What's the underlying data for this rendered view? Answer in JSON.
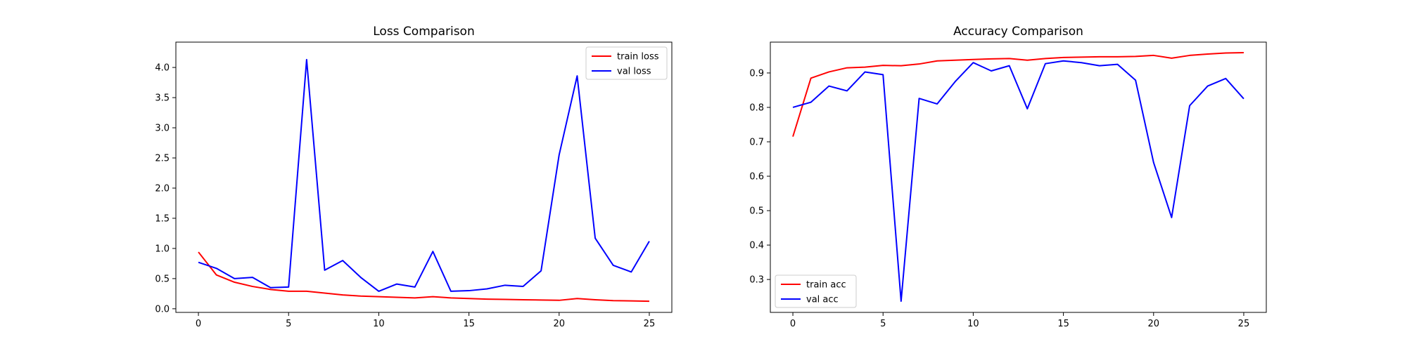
{
  "chart_data": [
    {
      "type": "line",
      "title": "Loss Comparison",
      "xlabel": "",
      "ylabel": "",
      "x": [
        0,
        1,
        2,
        3,
        4,
        5,
        6,
        7,
        8,
        9,
        10,
        11,
        12,
        13,
        14,
        15,
        16,
        17,
        18,
        19,
        20,
        21,
        22,
        23,
        24,
        25
      ],
      "xlim": [
        -1.25,
        26.25
      ],
      "ylim": [
        -0.06,
        4.42
      ],
      "xticks": [
        0,
        5,
        10,
        15,
        20,
        25
      ],
      "yticks": [
        0.0,
        0.5,
        1.0,
        1.5,
        2.0,
        2.5,
        3.0,
        3.5,
        4.0
      ],
      "ytick_labels": [
        "0.0",
        "0.5",
        "1.0",
        "1.5",
        "2.0",
        "2.5",
        "3.0",
        "3.5",
        "4.0"
      ],
      "legend_position": "upper right",
      "grid": false,
      "series": [
        {
          "name": "train loss",
          "color": "#ff0000",
          "values": [
            0.94,
            0.56,
            0.44,
            0.37,
            0.32,
            0.29,
            0.29,
            0.26,
            0.23,
            0.21,
            0.2,
            0.19,
            0.18,
            0.2,
            0.18,
            0.17,
            0.16,
            0.155,
            0.15,
            0.145,
            0.14,
            0.17,
            0.15,
            0.135,
            0.13,
            0.125
          ]
        },
        {
          "name": "val loss",
          "color": "#0000ff",
          "values": [
            0.77,
            0.67,
            0.5,
            0.52,
            0.35,
            0.36,
            4.13,
            0.64,
            0.8,
            0.52,
            0.29,
            0.41,
            0.36,
            0.95,
            0.29,
            0.3,
            0.33,
            0.39,
            0.37,
            0.63,
            2.55,
            3.86,
            1.17,
            0.72,
            0.61,
            1.12
          ]
        }
      ]
    },
    {
      "type": "line",
      "title": "Accuracy Comparison",
      "xlabel": "",
      "ylabel": "",
      "x": [
        0,
        1,
        2,
        3,
        4,
        5,
        6,
        7,
        8,
        9,
        10,
        11,
        12,
        13,
        14,
        15,
        16,
        17,
        18,
        19,
        20,
        21,
        22,
        23,
        24,
        25
      ],
      "xlim": [
        -1.25,
        26.25
      ],
      "ylim": [
        0.2044,
        0.9896
      ],
      "xticks": [
        0,
        5,
        10,
        15,
        20,
        25
      ],
      "yticks": [
        0.3,
        0.4,
        0.5,
        0.6,
        0.7,
        0.8,
        0.9
      ],
      "ytick_labels": [
        "0.3",
        "0.4",
        "0.5",
        "0.6",
        "0.7",
        "0.8",
        "0.9"
      ],
      "legend_position": "lower left",
      "grid": false,
      "series": [
        {
          "name": "train acc",
          "color": "#ff0000",
          "values": [
            0.715,
            0.885,
            0.903,
            0.915,
            0.917,
            0.922,
            0.921,
            0.926,
            0.935,
            0.937,
            0.939,
            0.941,
            0.942,
            0.937,
            0.942,
            0.945,
            0.946,
            0.947,
            0.947,
            0.948,
            0.951,
            0.943,
            0.951,
            0.955,
            0.958,
            0.959
          ]
        },
        {
          "name": "val acc",
          "color": "#0000ff",
          "values": [
            0.8,
            0.815,
            0.862,
            0.848,
            0.903,
            0.895,
            0.237,
            0.826,
            0.81,
            0.875,
            0.93,
            0.906,
            0.921,
            0.796,
            0.927,
            0.935,
            0.93,
            0.921,
            0.925,
            0.879,
            0.64,
            0.48,
            0.805,
            0.862,
            0.884,
            0.825
          ]
        }
      ]
    }
  ]
}
